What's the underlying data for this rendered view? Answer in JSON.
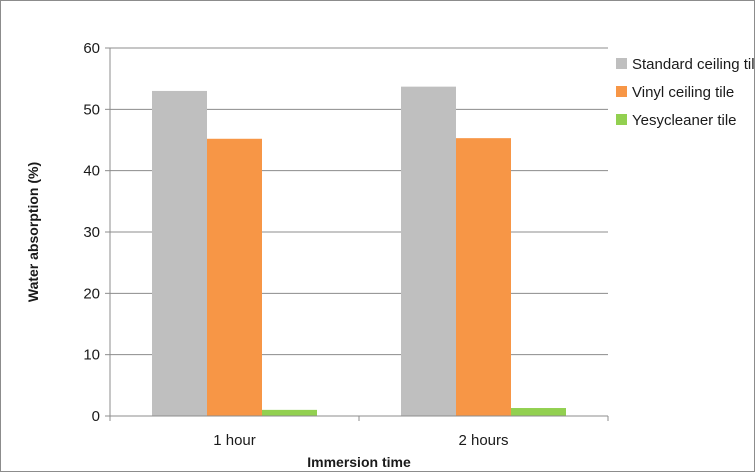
{
  "chart_data": {
    "type": "bar",
    "title": "",
    "xlabel": "Immersion time",
    "ylabel": "Water absorption (%)",
    "categories": [
      "1 hour",
      "2 hours"
    ],
    "ylim": [
      0,
      60
    ],
    "yticks": [
      0,
      10,
      20,
      30,
      40,
      50,
      60
    ],
    "grid": true,
    "legend_position": "top-right",
    "series": [
      {
        "name": "Standard ceiling tile",
        "color": "#bfbfbf",
        "values": [
          53.0,
          53.7
        ]
      },
      {
        "name": "Vinyl ceiling tile",
        "color": "#f79646",
        "values": [
          45.2,
          45.3
        ]
      },
      {
        "name": "Yesycleaner tile",
        "color": "#92d050",
        "values": [
          1.0,
          1.3
        ]
      }
    ]
  }
}
